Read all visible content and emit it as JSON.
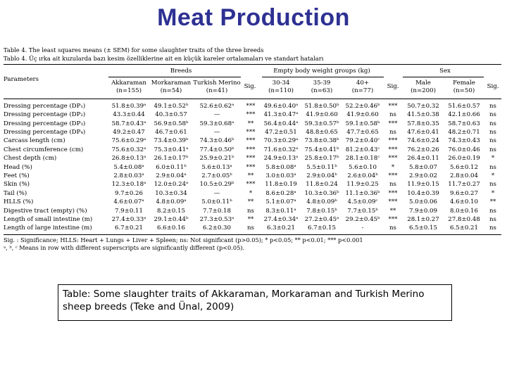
{
  "slide_title": "Meat Production",
  "table": {
    "caption_en": "Table 4. The least squares means (± SEM) for some slaughter traits of the three breeds",
    "caption_tr": "Tablo 4. Üç ırka ait kuzularda bazı kesim özelliklerine ait en küçük kareler ortalamaları ve standart hataları",
    "group_headers": {
      "breeds": "Breeds",
      "weight": "Empty body weight groups (kg)",
      "sex": "Sex"
    },
    "parameters_label": "Parameters",
    "sig_label": "Sig.",
    "columns": [
      {
        "name": "Akkaraman",
        "n": "(n=155)"
      },
      {
        "name": "Morkaraman",
        "n": "(n=54)"
      },
      {
        "name": "Turkish Merino",
        "n": "(n=41)"
      },
      {
        "name": "Sig.",
        "n": ""
      },
      {
        "name": "30-34",
        "n": "(n=110)"
      },
      {
        "name": "35-39",
        "n": "(n=63)"
      },
      {
        "name": "40+",
        "n": "(n=77)"
      },
      {
        "name": "Sig.",
        "n": ""
      },
      {
        "name": "Male",
        "n": "(n=200)"
      },
      {
        "name": "Female",
        "n": "(n=50)"
      },
      {
        "name": "Sig.",
        "n": ""
      }
    ],
    "rows": [
      [
        "Dressing percentage (DP₁)",
        "51.8±0.39ᵃ",
        "49.1±0.52ᵇ",
        "52.6±0.62ᵃ",
        "***",
        "49.6±0.40ᵃ",
        "51.8±0.50ᵇ",
        "52.2±0.46ᵇ",
        "***",
        "50.7±0.32",
        "51.6±0.57",
        "ns"
      ],
      [
        "Dressing percentage (DP₂)",
        "43.3±0.44",
        "40.3±0.57",
        "—",
        "***",
        "41.3±0.47ᵃ",
        "41.9±0.60",
        "41.9±0.60",
        "ns",
        "41.5±0.38",
        "42.1±0.66",
        "ns"
      ],
      [
        "Dressing percentage (DP₃)",
        "58.7±0.43ᵃ",
        "56.9±0.58ᵇ",
        "59.3±0.68ᵃ",
        "**",
        "56.4±0.44ᵃ",
        "59.3±0.57ᵇ",
        "59.1±0.58ᵇ",
        "***",
        "57.8±0.35",
        "58.7±0.63",
        "ns"
      ],
      [
        "Dressing percentage (DP₄)",
        "49.2±0.47",
        "46.7±0.61",
        "—",
        "***",
        "47.2±0.51",
        "48.8±0.65",
        "47.7±0.65",
        "ns",
        "47.6±0.41",
        "48.2±0.71",
        "ns"
      ],
      [
        "Carcass length (cm)",
        "75.6±0.29ᵃ",
        "73.4±0.39ᵇ",
        "74.3±0.46ᵇ",
        "***",
        "70.3±0.29ᵃ",
        "73.8±0.38ᵇ",
        "79.2±0.40ᶜ",
        "***",
        "74.6±0.24",
        "74.3±0.43",
        "ns"
      ],
      [
        "Chest circumference (cm)",
        "75.6±0.32ᵃ",
        "75.3±0.41ᵃ",
        "77.4±0.50ᵇ",
        "***",
        "71.6±0.32ᵃ",
        "75.4±0.41ᵇ",
        "81.2±0.43ᶜ",
        "***",
        "76.2±0.26",
        "76.0±0.46",
        "ns"
      ],
      [
        "Chest depth (cm)",
        "26.8±0.13ᵃ",
        "26.1±0.17ᵇ",
        "25.9±0.21ᵇ",
        "***",
        "24.9±0.13ᵃ",
        "25.8±0.17ᵇ",
        "28.1±0.18ᶜ",
        "***",
        "26.4±0.11",
        "26.0±0.19",
        "*"
      ],
      [
        "Head (%)",
        "5.4±0.08ᵃ",
        "6.0±0.11ᵇ",
        "5.6±0.13ᵃ",
        "***",
        "5.8±0.08ᵃ",
        "5.5±0.11ᵇ",
        "5.6±0.10",
        "*",
        "5.8±0.07",
        "5.6±0.12",
        "ns"
      ],
      [
        "Feet (%)",
        "2.8±0.03ᵃ",
        "2.9±0.04ᵃ",
        "2.7±0.05ᵇ",
        "**",
        "3.0±0.03ᵃ",
        "2.9±0.04ᵇ",
        "2.6±0.04ᵇ",
        "***",
        "2.9±0.02",
        "2.8±0.04",
        "*"
      ],
      [
        "Skin (%)",
        "12.3±0.18ᵃ",
        "12.0±0.24ᵃ",
        "10.5±0.29ᵇ",
        "***",
        "11.8±0.19",
        "11.8±0.24",
        "11.9±0.25",
        "ns",
        "11.9±0.15",
        "11.7±0.27",
        "ns"
      ],
      [
        "Tail (%)",
        "9.7±0.26",
        "10.3±0.34",
        "—",
        "*",
        "8.6±0.28ᵃ",
        "10.3±0.36ᵇ",
        "11.1±0.36ᵇ",
        "***",
        "10.4±0.39",
        "9.6±0.27",
        "*"
      ],
      [
        "HLLS (%)",
        "4.6±0.07ᵃ",
        "4.8±0.09ᵃ",
        "5.0±0.11ᵇ",
        "**",
        "5.1±0.07ᵃ",
        "4.8±0.09ᵇ",
        "4.5±0.09ᶜ",
        "***",
        "5.0±0.06",
        "4.6±0.10",
        "**"
      ],
      [
        "Digestive tract (empty) (%)",
        "7.9±0.11",
        "8.2±0.15",
        "7.7±0.18",
        "ns",
        "8.3±0.11ᵃ",
        "7.8±0.15ᵇ",
        "7.7±0.15ᵇ",
        "**",
        "7.9±0.09",
        "8.0±0.16",
        "ns"
      ],
      [
        "Length of small intestine (m)",
        "27.4±0.33ᵃ",
        "29.1±0.44ᵇ",
        "27.3±0.53ᵃ",
        "**",
        "27.4±0.34ᵃ",
        "27.2±0.45ᵃ",
        "29.2±0.45ᵇ",
        "***",
        "28.1±0.27",
        "27.8±0.48",
        "ns"
      ],
      [
        "Length of large intestine (m)",
        "6.7±0.21",
        "6.6±0.16",
        "6.2±0.30",
        "ns",
        "6.3±0.21",
        "6.7±0.15",
        "-",
        "ns",
        "6.5±0.15",
        "6.5±0.21",
        "ns"
      ]
    ],
    "footnote_sig": "Sig. : Significance; HLLS: Heart + Lungs + Liver + Spleen; ns: Not significant (p>0.05); * p<0.05; ** p<0.01; *** p<0.001",
    "footnote_means": "ᵃ, ᵇ, ᶜ Means in row with different superscripts are significantly different (p<0.05)."
  },
  "caption_box_text": "Table: Some slaughter traits of Akkaraman, Morkaraman and Turkish Merino sheep breeds (Teke and Ünal, 2009)",
  "colors": {
    "title": "#2e3192",
    "text": "#000000",
    "background": "#ffffff"
  }
}
